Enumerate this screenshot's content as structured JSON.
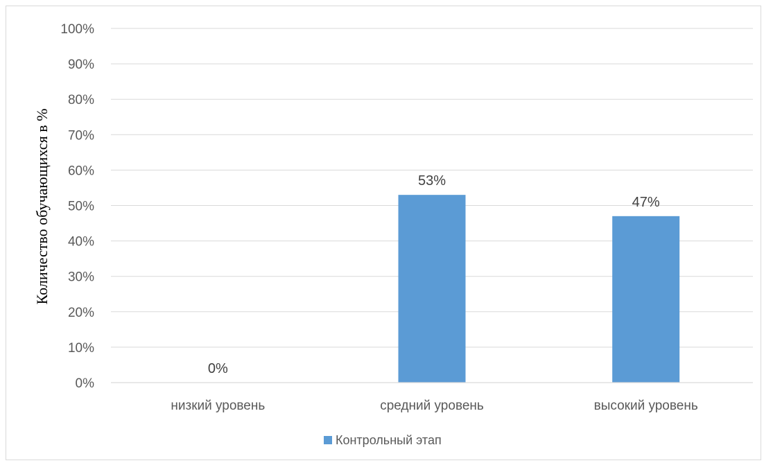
{
  "chart_data": {
    "type": "bar",
    "categories": [
      "низкий уровень",
      "средний уровень",
      "высокий уровень"
    ],
    "series": [
      {
        "name": "Контрольный этап",
        "values": [
          0,
          53,
          47
        ],
        "data_labels": [
          "0%",
          "53%",
          "47%"
        ],
        "color": "#5b9bd5"
      }
    ],
    "ylabel": "Количество обучающихся в %",
    "ylim": [
      0,
      100
    ],
    "yticks": [
      "0%",
      "10%",
      "20%",
      "30%",
      "40%",
      "50%",
      "60%",
      "70%",
      "80%",
      "90%",
      "100%"
    ],
    "grid": true,
    "legend": "bottom-center"
  }
}
